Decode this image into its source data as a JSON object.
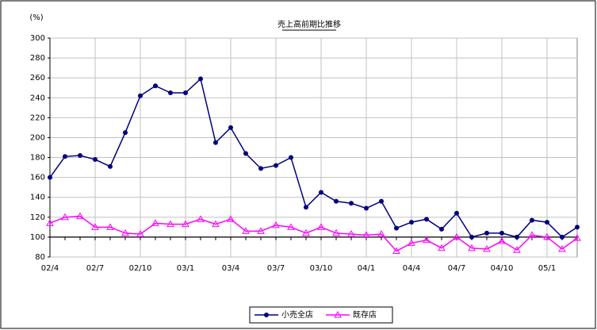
{
  "chart_data": {
    "type": "line",
    "title": "売上高前期比推移",
    "y_axis_label": "(%)",
    "categories": [
      "02/4",
      null,
      null,
      "02/7",
      null,
      null,
      "02/10",
      null,
      null,
      "03/1",
      null,
      null,
      "03/4",
      null,
      null,
      "03/7",
      null,
      null,
      "03/10",
      null,
      null,
      "04/1",
      null,
      null,
      "04/4",
      null,
      null,
      "04/7",
      null,
      null,
      "04/10",
      null,
      null,
      "05/1",
      null,
      null
    ],
    "series": [
      {
        "name": "小売全店",
        "color": "#000080",
        "marker": "circle",
        "values": [
          160,
          181,
          182,
          178,
          171,
          205,
          242,
          252,
          245,
          245,
          259,
          195,
          210,
          184,
          169,
          172,
          180,
          130,
          145,
          136,
          134,
          129,
          136,
          109,
          115,
          118,
          108,
          124,
          100,
          104,
          104,
          100,
          117,
          115,
          100,
          110
        ]
      },
      {
        "name": "既存店",
        "color": "#ff00ff",
        "marker": "triangle",
        "values": [
          114,
          120,
          121,
          110,
          110,
          104,
          103,
          114,
          113,
          113,
          118,
          113,
          118,
          106,
          106,
          112,
          110,
          104,
          110,
          104,
          103,
          102,
          103,
          86,
          94,
          97,
          89,
          100,
          89,
          88,
          96,
          87,
          102,
          100,
          88,
          99
        ]
      }
    ],
    "ylim": [
      80,
      300
    ],
    "yticks": [
      80,
      100,
      120,
      140,
      160,
      180,
      200,
      220,
      240,
      260,
      280,
      300
    ],
    "x_axis_at": 100,
    "grid": true,
    "legend": "bottom"
  }
}
